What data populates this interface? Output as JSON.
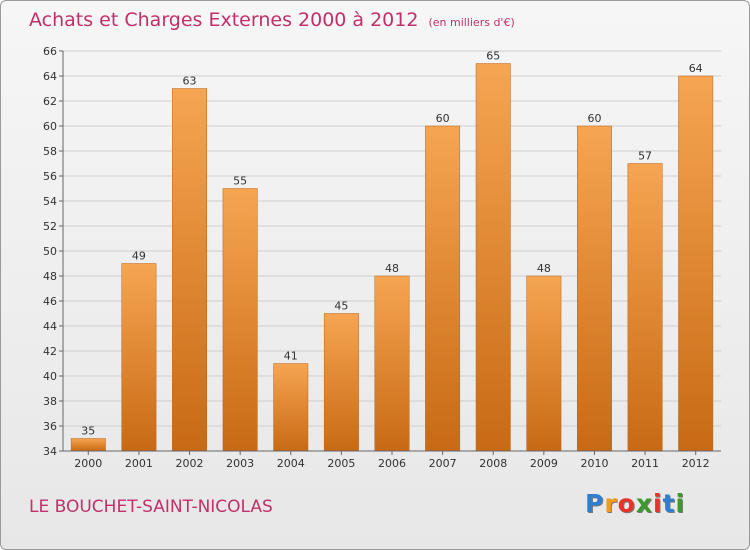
{
  "chart_data": {
    "type": "bar",
    "title": "Achats et Charges Externes 2000 à 2012",
    "subtitle": "(en milliers d'€)",
    "categories": [
      "2000",
      "2001",
      "2002",
      "2003",
      "2004",
      "2005",
      "2006",
      "2007",
      "2008",
      "2009",
      "2010",
      "2011",
      "2012"
    ],
    "values": [
      35,
      49,
      63,
      55,
      41,
      45,
      48,
      60,
      65,
      48,
      60,
      57,
      64
    ],
    "ylim": [
      34,
      66
    ],
    "yticks": [
      34,
      36,
      38,
      40,
      42,
      44,
      46,
      48,
      50,
      52,
      54,
      56,
      58,
      60,
      62,
      64,
      66
    ],
    "grid": true,
    "bar_color_top": "#f6a552",
    "bar_color_bottom": "#c86a14",
    "xlabel": "",
    "ylabel": ""
  },
  "location": "LE BOUCHET-SAINT-NICOLAS",
  "brand": {
    "text": "Proxiti",
    "letters": [
      "P",
      "r",
      "o",
      "x",
      "i",
      "t",
      "i"
    ],
    "letter_colors": [
      "#2e7fd0",
      "#f29a1a",
      "#e8332a",
      "#3a9a2c",
      "#e8332a",
      "#2e7fd0",
      "#3a9a2c"
    ]
  },
  "title_color": "#c0306a"
}
